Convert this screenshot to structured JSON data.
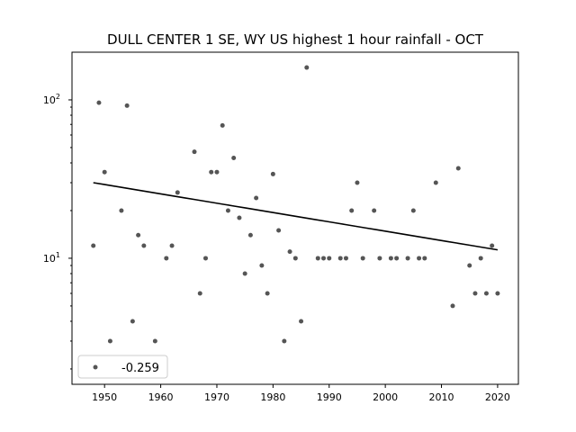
{
  "chart_data": {
    "type": "scatter",
    "title": "DULL CENTER 1 SE, WY US highest 1 hour rainfall - OCT",
    "xlabel": "",
    "ylabel": "",
    "xlim": [
      1944.2,
      2023.7
    ],
    "ylim": [
      1.6,
      200
    ],
    "yscale": "log",
    "x_ticks": [
      1950,
      1960,
      1970,
      1980,
      1990,
      2000,
      2010,
      2020
    ],
    "y_ticks": [
      {
        "value": 10,
        "base": "10",
        "exp": "1"
      },
      {
        "value": 100,
        "base": "10",
        "exp": "2"
      }
    ],
    "series": [
      {
        "name": "-0.259",
        "color": "#555555",
        "x": [
          1948,
          1949,
          1950,
          1951,
          1953,
          1954,
          1955,
          1956,
          1957,
          1959,
          1961,
          1962,
          1963,
          1966,
          1967,
          1968,
          1969,
          1970,
          1971,
          1972,
          1973,
          1974,
          1975,
          1976,
          1977,
          1978,
          1979,
          1980,
          1981,
          1982,
          1983,
          1984,
          1985,
          1986,
          1988,
          1989,
          1990,
          1992,
          1993,
          1994,
          1995,
          1996,
          1998,
          1999,
          2001,
          2002,
          2004,
          2005,
          2006,
          2007,
          2009,
          2012,
          2013,
          2015,
          2016,
          2017,
          2018,
          2019,
          2020
        ],
        "y": [
          12,
          96,
          35,
          3,
          20,
          92,
          4,
          14,
          12,
          3,
          10,
          12,
          26,
          47,
          6,
          10,
          35,
          35,
          69,
          20,
          43,
          18,
          8,
          14,
          24,
          9,
          6,
          34,
          15,
          3,
          11,
          10,
          4,
          160,
          10,
          10,
          10,
          10,
          10,
          20,
          30,
          10,
          20,
          10,
          10,
          10,
          10,
          20,
          10,
          10,
          30,
          5,
          37,
          9,
          6,
          10,
          6,
          12,
          6
        ]
      }
    ],
    "trend": {
      "x": [
        1948,
        2020
      ],
      "y": [
        30,
        11.3
      ],
      "color": "#000000"
    },
    "legend": {
      "label": "-0.259",
      "placement": "lower-left"
    }
  }
}
